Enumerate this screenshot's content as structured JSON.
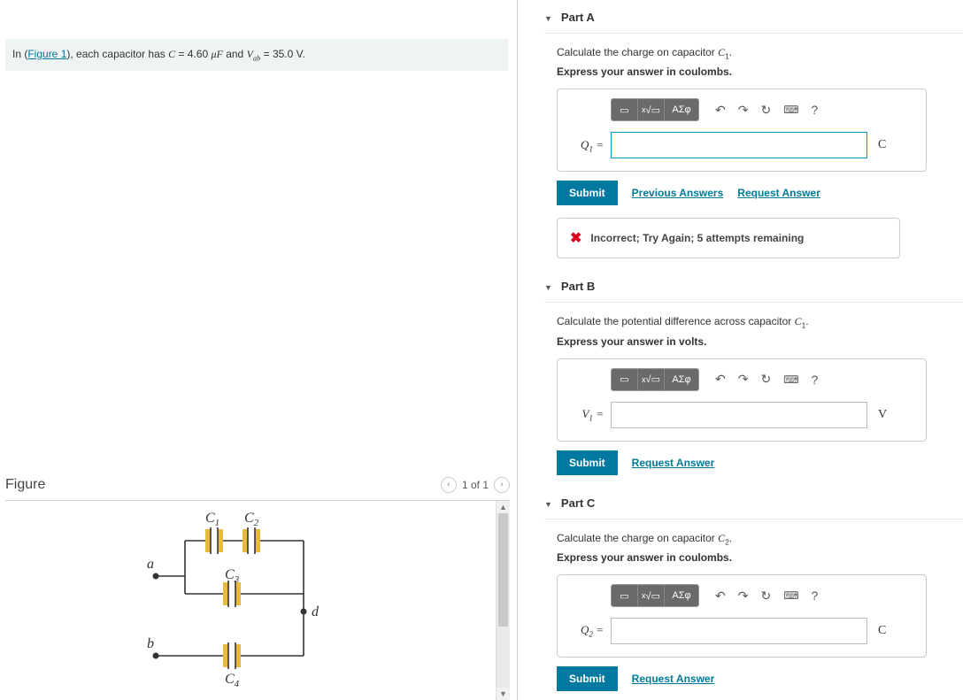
{
  "colors": {
    "accent": "#0079a1",
    "link": "#007a99",
    "error": "#d9001b",
    "panel_bg": "#eef3f3",
    "toolbar_gray": "#6a6a6a",
    "capacitor_fill": "#e8bb3f"
  },
  "problem": {
    "prefix": "In (",
    "figure_link": "Figure 1",
    "text_after_link": "), each capacitor has ",
    "c_var": "C",
    "c_eq": " = 4.60 ",
    "c_unit": "μF",
    "and": " and ",
    "v_var": "V",
    "v_sub": "ab",
    "v_eq": " = 35.0 V."
  },
  "figure": {
    "title": "Figure",
    "pager_text": "1 of 1",
    "labels": {
      "c1": "C",
      "c2": "C",
      "c3": "C",
      "c4": "C",
      "a": "a",
      "b": "b",
      "d": "d"
    },
    "subs": {
      "c1": "1",
      "c2": "2",
      "c3": "3",
      "c4": "4"
    }
  },
  "parts": [
    {
      "id": "A",
      "header": "Part A",
      "question_pre": "Calculate the charge on capacitor ",
      "question_var": "C",
      "question_sub": "1",
      "question_post": ".",
      "instruction": "Express your answer in coulombs.",
      "var_label_html": "Q<sub>1</sub> =",
      "var_label": "Q",
      "var_sub": "1",
      "unit": "C",
      "value": "",
      "highlight": true,
      "links": [
        "Previous Answers",
        "Request Answer"
      ],
      "feedback": "Incorrect; Try Again; 5 attempts remaining"
    },
    {
      "id": "B",
      "header": "Part B",
      "question_pre": "Calculate the potential difference across capacitor ",
      "question_var": "C",
      "question_sub": "1",
      "question_post": ".",
      "instruction": "Express your answer in volts.",
      "var_label": "V",
      "var_sub": "1",
      "unit": "V",
      "value": "",
      "highlight": false,
      "links": [
        "Request Answer"
      ],
      "feedback": null
    },
    {
      "id": "C",
      "header": "Part C",
      "question_pre": "Calculate the charge on capacitor ",
      "question_var": "C",
      "question_sub": "2",
      "question_post": ".",
      "instruction": "Express your answer in coulombs.",
      "var_label": "Q",
      "var_sub": "2",
      "unit": "C",
      "value": "",
      "highlight": false,
      "links": [
        "Request Answer"
      ],
      "feedback": null
    }
  ],
  "buttons": {
    "submit": "Submit",
    "toolbar_math": "ΑΣφ",
    "undo_icon": "↶",
    "redo_icon": "↷",
    "refresh_icon": "↻",
    "keyboard_icon": "⌨",
    "help_icon": "?"
  }
}
